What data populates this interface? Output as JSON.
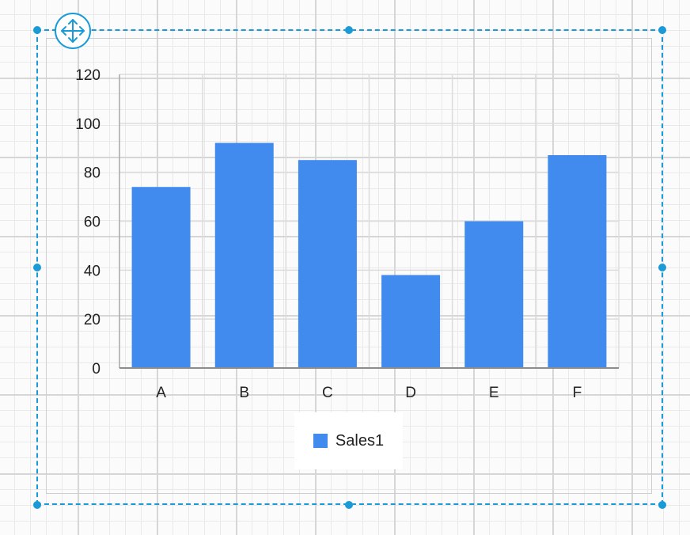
{
  "designer": {
    "selection_color": "#1a9ad6",
    "move_handle": {
      "icon": "move-arrows-icon"
    }
  },
  "chart_data": {
    "type": "bar",
    "categories": [
      "A",
      "B",
      "C",
      "D",
      "E",
      "F"
    ],
    "series": [
      {
        "name": "Sales1",
        "values": [
          74,
          92,
          85,
          38,
          60,
          87
        ],
        "color": "#418bef"
      }
    ],
    "title": "",
    "xlabel": "",
    "ylabel": "",
    "ylim": [
      0,
      120
    ],
    "yticks": [
      "0",
      "20",
      "40",
      "60",
      "80",
      "100",
      "120"
    ],
    "grid": true,
    "legend_position": "bottom"
  },
  "legend": {
    "items": [
      {
        "label": "Sales1",
        "color": "#418bef"
      }
    ]
  }
}
